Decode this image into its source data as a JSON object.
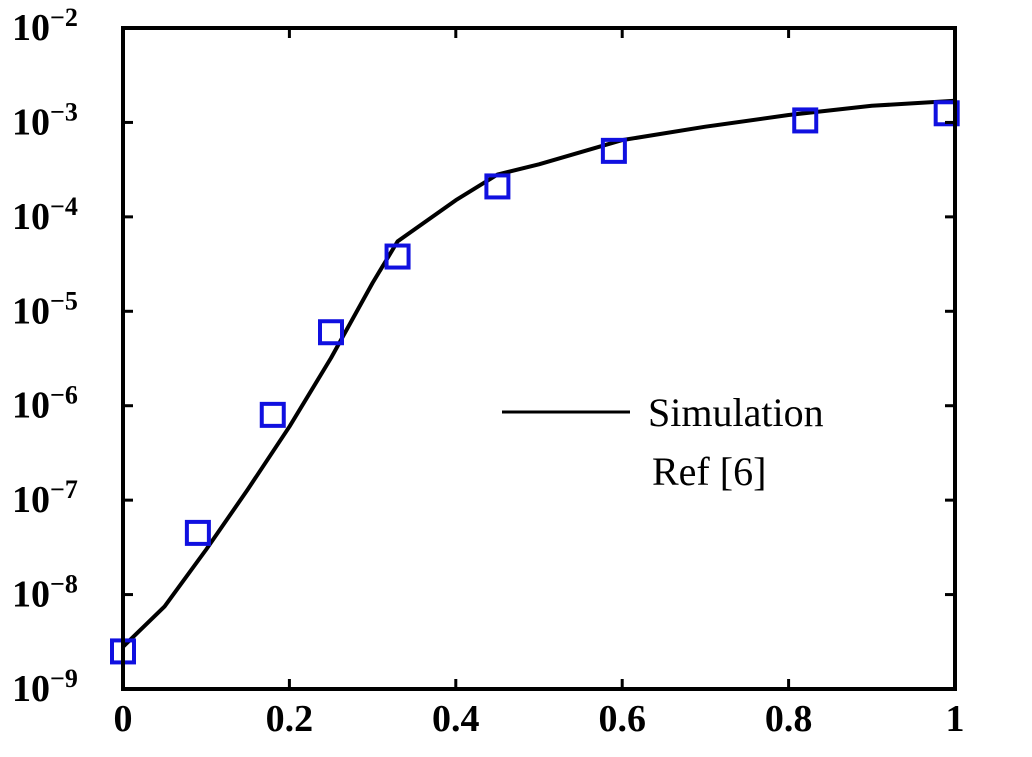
{
  "chart_data": {
    "type": "line",
    "title": "",
    "xlabel": "",
    "ylabel": "",
    "xlim": [
      0,
      1
    ],
    "ylim": [
      1e-09,
      0.01
    ],
    "yscale": "log",
    "grid": false,
    "legend_position": "center-right",
    "x_tick_labels": [
      "0",
      "0.2",
      "0.4",
      "0.6",
      "0.8",
      "1"
    ],
    "x_tick_values": [
      0,
      0.2,
      0.4,
      0.6,
      0.8,
      1
    ],
    "y_tick_exponents": [
      -9,
      -8,
      -7,
      -6,
      -5,
      -4,
      -3,
      -2
    ],
    "y_tick_base": "10",
    "series": [
      {
        "name": "Simulation",
        "style": "line",
        "color": "#000000",
        "x": [
          0,
          0.05,
          0.1,
          0.15,
          0.2,
          0.25,
          0.3,
          0.33,
          0.4,
          0.45,
          0.5,
          0.6,
          0.7,
          0.8,
          0.9,
          1.0
        ],
        "y": [
          2.8e-09,
          7.5e-09,
          3e-08,
          1.3e-07,
          6e-07,
          3.2e-06,
          2e-05,
          5.5e-05,
          0.00015,
          0.00028,
          0.00036,
          0.00065,
          0.0009,
          0.0012,
          0.0015,
          0.0017
        ]
      },
      {
        "name": "Ref [6]",
        "style": "marker-square",
        "color": "#1010e0",
        "x": [
          0,
          0.09,
          0.18,
          0.25,
          0.33,
          0.45,
          0.59,
          0.82,
          0.99
        ],
        "y": [
          2.5e-09,
          4.5e-08,
          8e-07,
          6e-06,
          3.8e-05,
          0.00021,
          0.0005,
          0.00105,
          0.00125
        ]
      }
    ]
  }
}
